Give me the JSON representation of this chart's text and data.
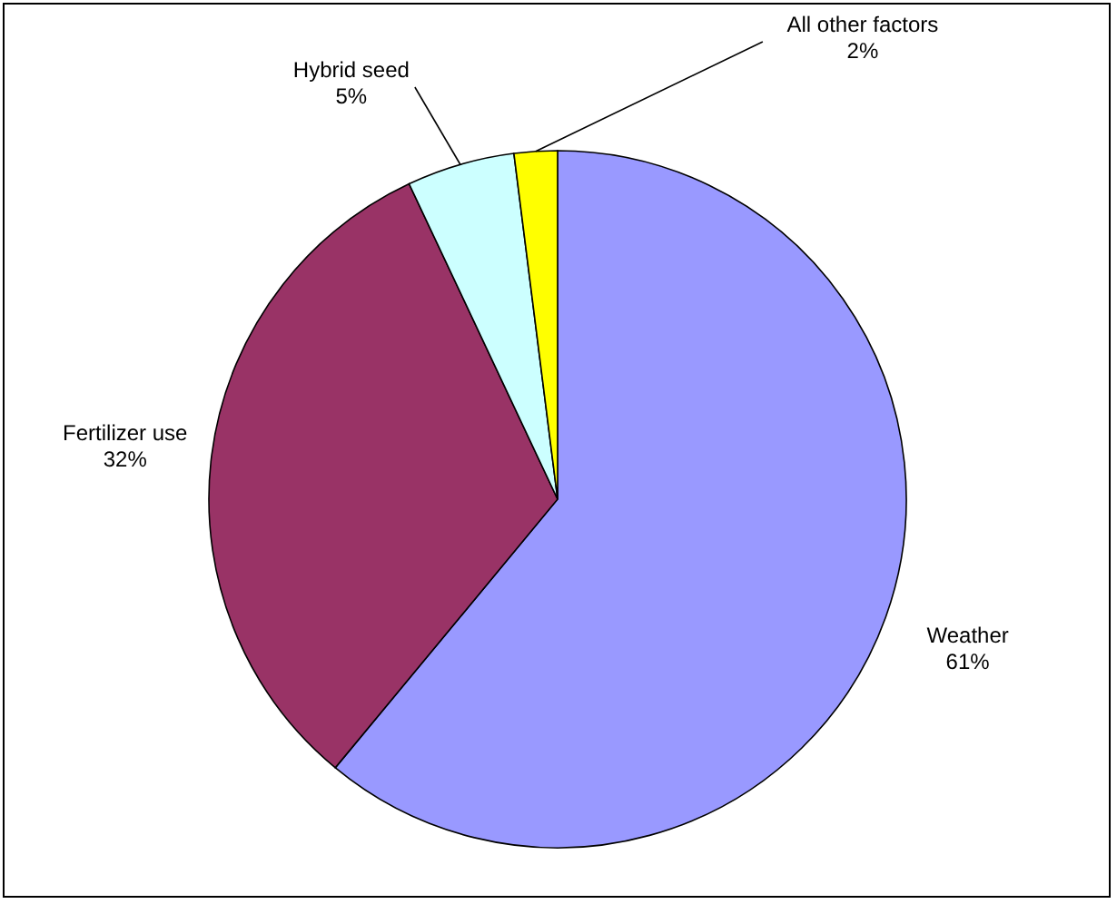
{
  "chart_data": {
    "type": "pie",
    "categories": [
      "Weather",
      "Fertilizer use",
      "Hybrid seed",
      "All other factors"
    ],
    "values": [
      61,
      32,
      5,
      2
    ],
    "colors": [
      "#9999ff",
      "#993366",
      "#ccffff",
      "#ffff00"
    ],
    "value_labels": [
      "61%",
      "32%",
      "5%",
      "2%"
    ]
  }
}
